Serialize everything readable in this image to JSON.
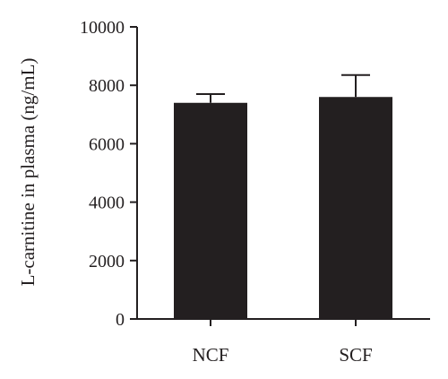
{
  "chart_data": {
    "type": "bar",
    "title": "",
    "xlabel": "",
    "ylabel": "L-carnitine in plasma (ng/mL)",
    "categories": [
      "NCF",
      "SCF"
    ],
    "values": [
      7400,
      7600
    ],
    "error": [
      300,
      750
    ],
    "ylim": [
      0,
      10000
    ],
    "yticks": [
      "0",
      "2000",
      "4000",
      "6000",
      "8000",
      "10000"
    ],
    "ytick_values": [
      0,
      2000,
      4000,
      6000,
      8000,
      10000
    ],
    "grid": false,
    "legend": "none",
    "bar_color": "#231f20",
    "axis_color": "#231f20"
  }
}
